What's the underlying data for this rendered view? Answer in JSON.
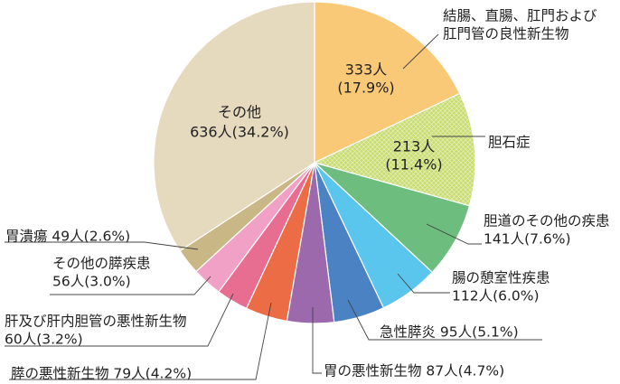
{
  "chart_data": {
    "type": "pie",
    "title": "",
    "start": "12 o'clock",
    "direction": "clockwise",
    "slices": [
      {
        "label_lines": [
          "結腸、直腸、肛門および",
          "肛門管の良性新生物"
        ],
        "count": "333人",
        "pct": "(17.9%)",
        "value": 17.9,
        "color": "#FAC978",
        "pattern": "none"
      },
      {
        "label_lines": [
          "胆石症"
        ],
        "count": "213人",
        "pct": "(11.4%)",
        "value": 11.4,
        "color": "#C9DC72",
        "pattern": "crosshatch"
      },
      {
        "label_lines": [
          "胆道のその他の疾患",
          "141人(7.6%)"
        ],
        "value": 7.6,
        "color": "#6DBE7E",
        "pattern": "none"
      },
      {
        "label_lines": [
          "腸の憩室性疾患",
          "112人(6.0%)"
        ],
        "value": 6.0,
        "color": "#5BC6ED",
        "pattern": "none"
      },
      {
        "label_lines": [
          "急性膵炎 95人(5.1%)"
        ],
        "value": 5.1,
        "color": "#4A82C4",
        "pattern": "none"
      },
      {
        "label_lines": [
          "胃の悪性新生物 87人(4.7%)"
        ],
        "value": 4.7,
        "color": "#9B69AC",
        "pattern": "none"
      },
      {
        "label_lines": [
          "膵の悪性新生物 79人(4.2%)"
        ],
        "value": 4.2,
        "color": "#EC6C45",
        "pattern": "none"
      },
      {
        "label_lines": [
          "肝及び肝内胆管の悪性新生物",
          "60人(3.2%)"
        ],
        "value": 3.2,
        "color": "#E76D91",
        "pattern": "none"
      },
      {
        "label_lines": [
          "その他の膵疾患",
          "56人(3.0%)"
        ],
        "value": 3.0,
        "color": "#F2A1C6",
        "pattern": "none"
      },
      {
        "label_lines": [
          "胃潰瘍 49人(2.6%)"
        ],
        "value": 2.6,
        "color": "#C9B786",
        "pattern": "none"
      },
      {
        "label_lines": [
          "その他",
          "636人(34.2%)"
        ],
        "value": 34.2,
        "color": "#E5D9BE",
        "pattern": "none"
      }
    ]
  }
}
